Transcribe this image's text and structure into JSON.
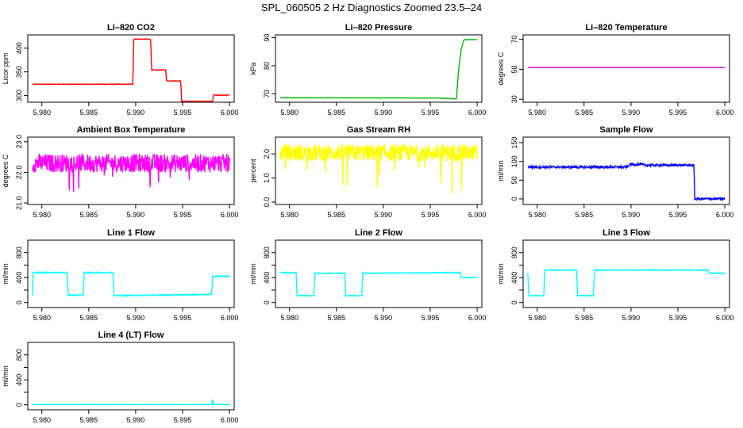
{
  "page_title": "SPL_060505  2 Hz Diagnostics Zoomed 23.5–24",
  "chart_data": [
    {
      "type": "line",
      "title": "Li–820 CO2",
      "ylabel": "Licor ppm",
      "xlim": [
        5.9785,
        6.0005
      ],
      "ylim": [
        286,
        428
      ],
      "yticks": [
        300,
        350,
        400
      ],
      "xticks": [
        "5.980",
        "5.985",
        "5.990",
        "5.995",
        "6.000"
      ],
      "color": "#ff0000",
      "noise": 0.5,
      "series": [
        {
          "x": [
            5.979,
            5.9897,
            5.9898,
            5.9916,
            5.9917,
            5.9932,
            5.9933,
            5.9948,
            5.9949,
            5.9982,
            5.9983,
            6.0
          ],
          "y": [
            324,
            324,
            419,
            419,
            354,
            354,
            331,
            331,
            288,
            288,
            301,
            301
          ]
        }
      ]
    },
    {
      "type": "line",
      "title": "Li–820 Pressure",
      "ylabel": "kPa",
      "xlim": [
        5.9785,
        6.0005
      ],
      "ylim": [
        67,
        91
      ],
      "yticks": [
        70,
        80,
        90
      ],
      "xticks": [
        "5.980",
        "5.985",
        "5.990",
        "5.995",
        "6.000"
      ],
      "color": "#00bb00",
      "noise": 0.05,
      "series": [
        {
          "x": [
            5.979,
            5.996,
            5.9978,
            5.998,
            5.9983,
            5.9986,
            6.0
          ],
          "y": [
            68.6,
            68.5,
            68.2,
            78,
            86,
            89.3,
            89.3
          ]
        }
      ]
    },
    {
      "type": "line",
      "title": "Li–820 Temperature",
      "ylabel": "degrees C",
      "xlim": [
        5.9785,
        6.0005
      ],
      "ylim": [
        28,
        73
      ],
      "yticks": [
        30,
        50,
        70
      ],
      "xticks": [
        "5.980",
        "5.985",
        "5.990",
        "5.995",
        "6.000"
      ],
      "color": "#cc00cc",
      "noise": 0,
      "series": [
        {
          "x": [
            5.979,
            6.0
          ],
          "y": [
            51.2,
            51.2
          ]
        }
      ]
    },
    {
      "type": "line",
      "title": "Ambient Box Temperature",
      "ylabel": "degrees C",
      "xlim": [
        5.9785,
        6.0005
      ],
      "ylim": [
        20.95,
        23.15
      ],
      "yticks": [
        21.0,
        22.0,
        23.0
      ],
      "ytick_labels": [
        "21.0",
        "22.0",
        "23.0"
      ],
      "xticks": [
        "5.980",
        "5.985",
        "5.990",
        "5.995",
        "6.000"
      ],
      "color": "#ff00ff",
      "noise": 0.3,
      "spikes": 0.8,
      "series": [
        {
          "x": [
            5.979,
            6.0
          ],
          "y": [
            22.3,
            22.3
          ]
        }
      ]
    },
    {
      "type": "line",
      "title": "Gas Stream RH",
      "ylabel": "percent",
      "xlim": [
        5.9785,
        6.0005
      ],
      "ylim": [
        -0.1,
        2.7
      ],
      "yticks": [
        0.0,
        1.0,
        2.0
      ],
      "ytick_labels": [
        "0.0",
        "1.0",
        "2.0"
      ],
      "xticks": [
        "5.980",
        "5.985",
        "5.990",
        "5.995",
        "6.000"
      ],
      "color": "#ffff00",
      "noise": 0.35,
      "spikes": 1.6,
      "series": [
        {
          "x": [
            5.979,
            6.0
          ],
          "y": [
            2.05,
            2.05
          ]
        }
      ]
    },
    {
      "type": "line",
      "title": "Sample Flow",
      "ylabel": "ml/min",
      "xlim": [
        5.9785,
        6.0005
      ],
      "ylim": [
        -15,
        165
      ],
      "yticks": [
        0,
        50,
        100,
        150
      ],
      "xticks": [
        "5.980",
        "5.985",
        "5.990",
        "5.995",
        "6.000"
      ],
      "color": "#0000ff",
      "noise": 3,
      "series": [
        {
          "x": [
            5.979,
            5.9897,
            5.9898,
            5.9912,
            5.9914,
            5.9967,
            5.9968,
            6.0
          ],
          "y": [
            85,
            85,
            92,
            92,
            90,
            90,
            0,
            0
          ]
        }
      ]
    },
    {
      "type": "line",
      "title": "Line 1 Flow",
      "ylabel": "ml/min",
      "xlim": [
        5.9785,
        6.0005
      ],
      "ylim": [
        -80,
        1000
      ],
      "yticks": [
        0,
        200,
        400,
        600,
        800
      ],
      "ytick_labels": [
        "0",
        "",
        "400",
        "",
        "800"
      ],
      "xticks": [
        "5.980",
        "5.985",
        "5.990",
        "5.995",
        "6.000"
      ],
      "color": "#00ffff",
      "noise": 8,
      "series": [
        {
          "x": [
            5.979,
            5.979,
            5.9827,
            5.9828,
            5.9844,
            5.9845,
            5.9876,
            5.9877,
            5.9981,
            5.9982,
            6.0
          ],
          "y": [
            120,
            480,
            480,
            120,
            120,
            480,
            480,
            110,
            130,
            420,
            420
          ]
        }
      ]
    },
    {
      "type": "line",
      "title": "Line 2 Flow",
      "ylabel": "ml/min",
      "xlim": [
        5.9785,
        6.0005
      ],
      "ylim": [
        -80,
        1000
      ],
      "yticks": [
        0,
        200,
        400,
        600,
        800
      ],
      "ytick_labels": [
        "0",
        "",
        "400",
        "",
        "800"
      ],
      "xticks": [
        "5.980",
        "5.985",
        "5.990",
        "5.995",
        "6.000"
      ],
      "color": "#00ffff",
      "noise": 6,
      "series": [
        {
          "x": [
            5.979,
            5.9807,
            5.9808,
            5.9826,
            5.9827,
            5.9859,
            5.986,
            5.9877,
            5.9878,
            5.9982,
            5.9983,
            6.0
          ],
          "y": [
            480,
            480,
            110,
            110,
            470,
            470,
            110,
            110,
            470,
            480,
            400,
            400
          ]
        }
      ]
    },
    {
      "type": "line",
      "title": "Line 3 Flow",
      "ylabel": "ml/min",
      "xlim": [
        5.9785,
        6.0005
      ],
      "ylim": [
        -80,
        1000
      ],
      "yticks": [
        0,
        200,
        400,
        600,
        800
      ],
      "ytick_labels": [
        "0",
        "",
        "400",
        "",
        "800"
      ],
      "xticks": [
        "5.980",
        "5.985",
        "5.990",
        "5.995",
        "6.000"
      ],
      "color": "#00ffff",
      "noise": 6,
      "series": [
        {
          "x": [
            5.979,
            5.9791,
            5.9807,
            5.9808,
            5.9842,
            5.9843,
            5.986,
            5.9861,
            5.9982,
            5.9983,
            6.0
          ],
          "y": [
            480,
            110,
            110,
            520,
            520,
            110,
            110,
            520,
            520,
            470,
            470
          ]
        }
      ]
    },
    {
      "type": "line",
      "title": "Line 4 (LT) Flow",
      "ylabel": "ml/min",
      "xlim": [
        5.9785,
        6.0005
      ],
      "ylim": [
        -80,
        1000
      ],
      "yticks": [
        0,
        200,
        400,
        600,
        800
      ],
      "ytick_labels": [
        "0",
        "",
        "400",
        "",
        "800"
      ],
      "xticks": [
        "5.980",
        "5.985",
        "5.990",
        "5.995",
        "6.000"
      ],
      "color": "#00ffff",
      "noise": 1,
      "series": [
        {
          "x": [
            5.979,
            5.9981,
            5.9982,
            5.9983,
            6.0
          ],
          "y": [
            5,
            5,
            90,
            5,
            5
          ]
        }
      ]
    }
  ]
}
